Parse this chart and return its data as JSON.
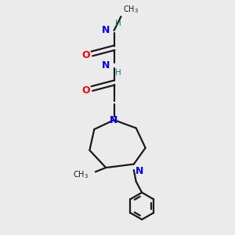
{
  "background_color": "#ebebeb",
  "bond_color": "#1a1a1a",
  "nitrogen_color": "#0000ff",
  "oxygen_color": "#ff0000",
  "nh_color": "#008080",
  "figsize": [
    3.0,
    3.0
  ],
  "dpi": 100,
  "xlim": [
    0,
    10
  ],
  "ylim": [
    0,
    10
  ],
  "lw": 1.6,
  "fs": 8.0
}
